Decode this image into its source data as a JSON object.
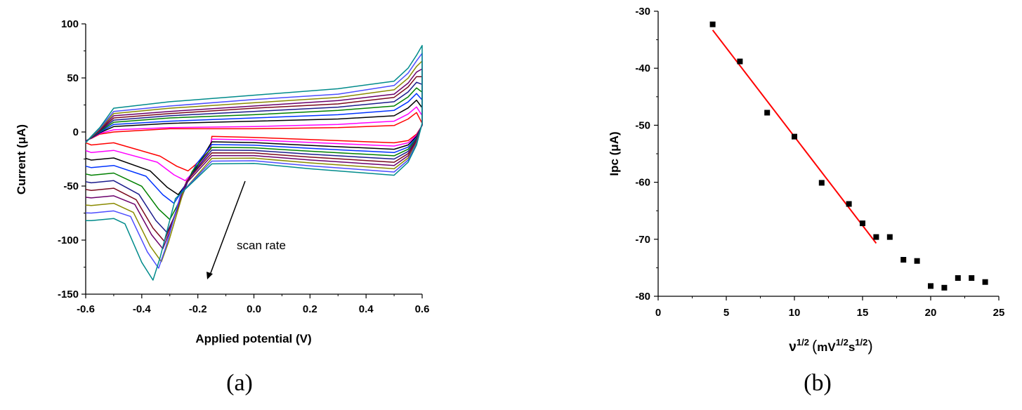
{
  "chart_data": [
    {
      "type": "line",
      "panel_label": "(a)",
      "xlabel": "Applied potential (V)",
      "ylabel": "Current (μA)",
      "xlim": [
        -0.6,
        0.6
      ],
      "ylim": [
        -150,
        100
      ],
      "xticks": [
        "-0.6",
        "-0.4",
        "-0.2",
        "0.0",
        "0.2",
        "0.4",
        "0.6"
      ],
      "yticks": [
        "-150",
        "-100",
        "-50",
        "0",
        "50",
        "100"
      ],
      "annotation": "scan rate",
      "grid": false,
      "series": [
        {
          "color": "#ff0000",
          "peak": [
            -0.235,
            -36
          ],
          "upper": [
            0,
            3,
            3,
            4,
            6
          ]
        },
        {
          "color": "#ff00ff",
          "peak": [
            -0.245,
            -45
          ],
          "upper": [
            2,
            4,
            5,
            7,
            10
          ]
        },
        {
          "color": "#000000",
          "peak": [
            -0.27,
            -58
          ],
          "upper": [
            5,
            8,
            10,
            12,
            15
          ]
        },
        {
          "color": "#0033ff",
          "peak": [
            -0.285,
            -66
          ],
          "upper": [
            7,
            10,
            13,
            16,
            20
          ]
        },
        {
          "color": "#008000",
          "peak": [
            -0.3,
            -81
          ],
          "upper": [
            9,
            13,
            16,
            20,
            24
          ]
        },
        {
          "color": "#1c1c8c",
          "peak": [
            -0.31,
            -93
          ],
          "upper": [
            11,
            15,
            19,
            23,
            28
          ]
        },
        {
          "color": "#7a0a1e",
          "peak": [
            -0.32,
            -101
          ],
          "upper": [
            13,
            17,
            22,
            26,
            32
          ]
        },
        {
          "color": "#6b006b",
          "peak": [
            -0.325,
            -108
          ],
          "upper": [
            15,
            19,
            24,
            29,
            35
          ]
        },
        {
          "color": "#8a8a00",
          "peak": [
            -0.33,
            -120
          ],
          "upper": [
            17,
            22,
            27,
            32,
            39
          ]
        },
        {
          "color": "#4d4dff",
          "peak": [
            -0.34,
            -126
          ],
          "upper": [
            19,
            24,
            30,
            35,
            43
          ]
        },
        {
          "color": "#008b8b",
          "peak": [
            -0.36,
            -137
          ],
          "upper": [
            22,
            28,
            34,
            40,
            47
          ]
        }
      ]
    },
    {
      "type": "scatter",
      "panel_label": "(b)",
      "xlabel_base": "ν",
      "xlabel_exp": "1/2",
      "xlabel_unit_pre": "mV",
      "xlabel_unit_exp1": "1/2",
      "xlabel_unit_mid": "s",
      "xlabel_unit_exp2": "1/2",
      "ylabel": "Ipc (μA)",
      "xlim": [
        0,
        25
      ],
      "ylim": [
        -80,
        -30
      ],
      "xticks": [
        "0",
        "5",
        "10",
        "15",
        "20",
        "25"
      ],
      "yticks": [
        "-80",
        "-70",
        "-60",
        "-50",
        "-40",
        "-30"
      ],
      "grid": false,
      "points": [
        [
          4,
          -32.3
        ],
        [
          6,
          -38.8
        ],
        [
          8,
          -47.8
        ],
        [
          10,
          -52.0
        ],
        [
          12,
          -60.1
        ],
        [
          14,
          -63.8
        ],
        [
          15,
          -67.2
        ],
        [
          16,
          -69.6
        ],
        [
          17,
          -69.6
        ],
        [
          18,
          -73.6
        ],
        [
          19,
          -73.8
        ],
        [
          20,
          -78.2
        ],
        [
          21,
          -78.5
        ],
        [
          22,
          -76.8
        ],
        [
          23,
          -76.8
        ],
        [
          24,
          -77.5
        ]
      ],
      "fit": {
        "color": "#ff0000",
        "x": [
          4,
          16
        ],
        "y": [
          -33.3,
          -70.7
        ]
      },
      "marker_color": "#000000"
    }
  ]
}
